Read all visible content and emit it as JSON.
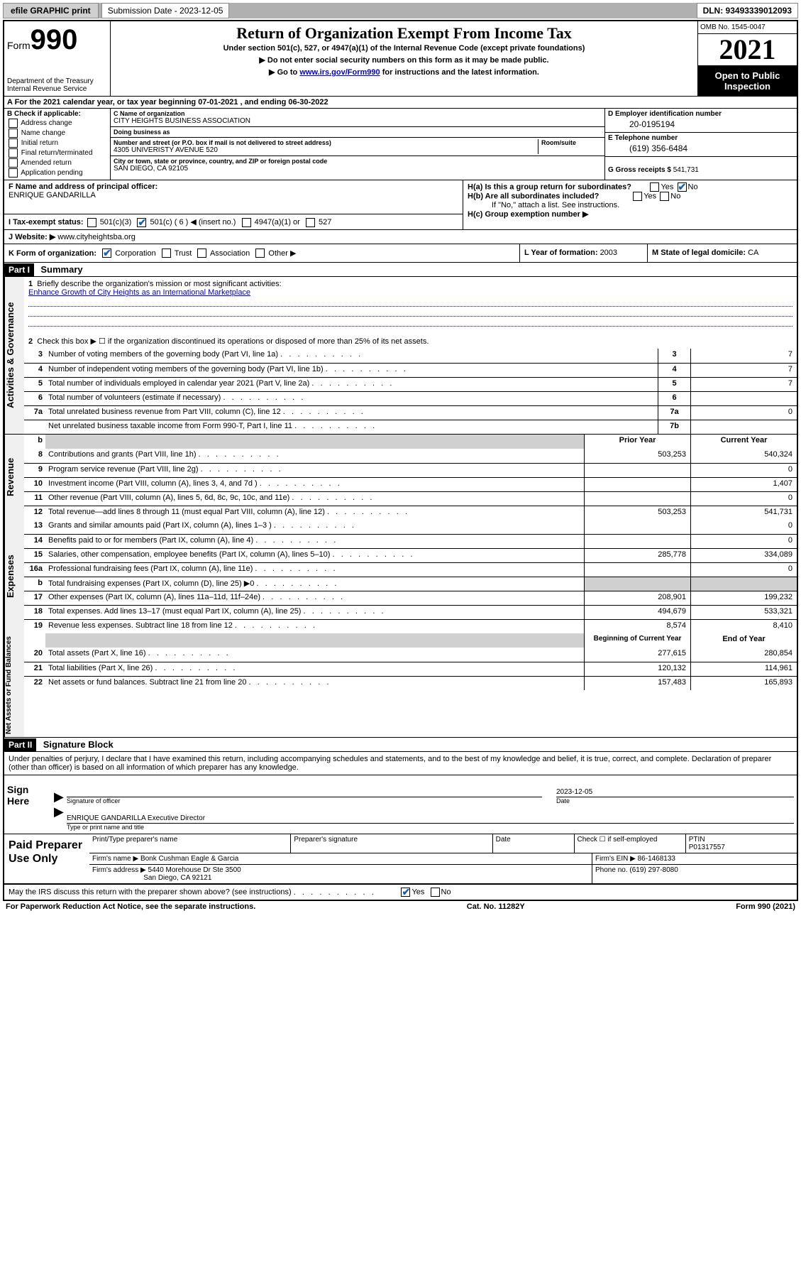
{
  "topbar": {
    "efile_label": "efile GRAPHIC print",
    "submission_label": "Submission Date - 2023-12-05",
    "dln_label": "DLN: 93493339012093"
  },
  "header": {
    "form_label": "Form",
    "form_number": "990",
    "dept": "Department of the Treasury",
    "irs": "Internal Revenue Service",
    "title": "Return of Organization Exempt From Income Tax",
    "subtitle": "Under section 501(c), 527, or 4947(a)(1) of the Internal Revenue Code (except private foundations)",
    "note1": "▶ Do not enter social security numbers on this form as it may be made public.",
    "note2_pre": "▶ Go to ",
    "note2_link": "www.irs.gov/Form990",
    "note2_post": " for instructions and the latest information.",
    "omb": "OMB No. 1545-0047",
    "year": "2021",
    "opi": "Open to Public Inspection"
  },
  "row_a": "A For the 2021 calendar year, or tax year beginning 07-01-2021    , and ending 06-30-2022",
  "col_b": {
    "hdr": "B Check if applicable:",
    "opts": [
      "Address change",
      "Name change",
      "Initial return",
      "Final return/terminated",
      "Amended return",
      "Application pending"
    ]
  },
  "col_c": {
    "name_lbl": "C Name of organization",
    "name_val": "CITY HEIGHTS BUSINESS ASSOCIATION",
    "dba_lbl": "Doing business as",
    "dba_val": "",
    "addr_lbl": "Number and street (or P.O. box if mail is not delivered to street address)",
    "room_lbl": "Room/suite",
    "addr_val": "4305 UNIVERISTY AVENUE 520",
    "city_lbl": "City or town, state or province, country, and ZIP or foreign postal code",
    "city_val": "SAN DIEGO, CA  92105"
  },
  "col_de": {
    "d_lbl": "D Employer identification number",
    "d_val": "20-0195194",
    "e_lbl": "E Telephone number",
    "e_val": "(619) 356-6484",
    "g_lbl": "G Gross receipts $",
    "g_val": "541,731"
  },
  "row_f": {
    "f_lbl": "F  Name and address of principal officer:",
    "f_val": "ENRIQUE GANDARILLA",
    "ha_lbl": "H(a)  Is this a group return for subordinates?",
    "hb_lbl": "H(b)  Are all subordinates included?",
    "hb_note": "If \"No,\" attach a list. See instructions.",
    "hc_lbl": "H(c)  Group exemption number ▶",
    "yes": "Yes",
    "no": "No"
  },
  "row_i": {
    "lbl": "I    Tax-exempt status:",
    "o1": "501(c)(3)",
    "o2": "501(c) ( 6 ) ◀ (insert no.)",
    "o3": "4947(a)(1) or",
    "o4": "527"
  },
  "row_j": {
    "lbl": "J    Website: ▶ ",
    "val": "www.cityheightsba.org"
  },
  "row_k": {
    "lbl": "K Form of organization:",
    "o1": "Corporation",
    "o2": "Trust",
    "o3": "Association",
    "o4": "Other ▶",
    "l_lbl": "L Year of formation: ",
    "l_val": "2003",
    "m_lbl": "M State of legal domicile: ",
    "m_val": "CA"
  },
  "part1": {
    "hdr": "Part I",
    "title": "Summary",
    "tabs": {
      "gov": "Activities & Governance",
      "rev": "Revenue",
      "exp": "Expenses",
      "net": "Net Assets or Fund Balances"
    },
    "q1_lbl": "Briefly describe the organization's mission or most significant activities:",
    "q1_val": "Enhance Growth of City Heights as an International Marketplace",
    "q2": "Check this box ▶ ☐  if the organization discontinued its operations or disposed of more than 25% of its net assets.",
    "lines_gov": [
      {
        "n": "3",
        "t": "Number of voting members of the governing body (Part VI, line 1a)",
        "b": "3",
        "v": "7"
      },
      {
        "n": "4",
        "t": "Number of independent voting members of the governing body (Part VI, line 1b)",
        "b": "4",
        "v": "7"
      },
      {
        "n": "5",
        "t": "Total number of individuals employed in calendar year 2021 (Part V, line 2a)",
        "b": "5",
        "v": "7"
      },
      {
        "n": "6",
        "t": "Total number of volunteers (estimate if necessary)",
        "b": "6",
        "v": ""
      },
      {
        "n": "7a",
        "t": "Total unrelated business revenue from Part VIII, column (C), line 12",
        "b": "7a",
        "v": "0"
      },
      {
        "n": "",
        "t": "Net unrelated business taxable income from Form 990-T, Part I, line 11",
        "b": "7b",
        "v": ""
      }
    ],
    "hdr_prior": "Prior Year",
    "hdr_curr": "Current Year",
    "lines_rev": [
      {
        "n": "8",
        "t": "Contributions and grants (Part VIII, line 1h)",
        "p": "503,253",
        "c": "540,324"
      },
      {
        "n": "9",
        "t": "Program service revenue (Part VIII, line 2g)",
        "p": "",
        "c": "0"
      },
      {
        "n": "10",
        "t": "Investment income (Part VIII, column (A), lines 3, 4, and 7d )",
        "p": "",
        "c": "1,407"
      },
      {
        "n": "11",
        "t": "Other revenue (Part VIII, column (A), lines 5, 6d, 8c, 9c, 10c, and 11e)",
        "p": "",
        "c": "0"
      },
      {
        "n": "12",
        "t": "Total revenue—add lines 8 through 11 (must equal Part VIII, column (A), line 12)",
        "p": "503,253",
        "c": "541,731"
      }
    ],
    "lines_exp": [
      {
        "n": "13",
        "t": "Grants and similar amounts paid (Part IX, column (A), lines 1–3 )",
        "p": "",
        "c": "0"
      },
      {
        "n": "14",
        "t": "Benefits paid to or for members (Part IX, column (A), line 4)",
        "p": "",
        "c": "0"
      },
      {
        "n": "15",
        "t": "Salaries, other compensation, employee benefits (Part IX, column (A), lines 5–10)",
        "p": "285,778",
        "c": "334,089"
      },
      {
        "n": "16a",
        "t": "Professional fundraising fees (Part IX, column (A), line 11e)",
        "p": "",
        "c": "0"
      },
      {
        "n": "b",
        "t": "Total fundraising expenses (Part IX, column (D), line 25) ▶0",
        "p": "shade",
        "c": "shade"
      },
      {
        "n": "17",
        "t": "Other expenses (Part IX, column (A), lines 11a–11d, 11f–24e)",
        "p": "208,901",
        "c": "199,232"
      },
      {
        "n": "18",
        "t": "Total expenses. Add lines 13–17 (must equal Part IX, column (A), line 25)",
        "p": "494,679",
        "c": "533,321"
      },
      {
        "n": "19",
        "t": "Revenue less expenses. Subtract line 18 from line 12",
        "p": "8,574",
        "c": "8,410"
      }
    ],
    "hdr_beg": "Beginning of Current Year",
    "hdr_end": "End of Year",
    "lines_net": [
      {
        "n": "20",
        "t": "Total assets (Part X, line 16)",
        "p": "277,615",
        "c": "280,854"
      },
      {
        "n": "21",
        "t": "Total liabilities (Part X, line 26)",
        "p": "120,132",
        "c": "114,961"
      },
      {
        "n": "22",
        "t": "Net assets or fund balances. Subtract line 21 from line 20",
        "p": "157,483",
        "c": "165,893"
      }
    ]
  },
  "part2": {
    "hdr": "Part II",
    "title": "Signature Block",
    "decl": "Under penalties of perjury, I declare that I have examined this return, including accompanying schedules and statements, and to the best of my knowledge and belief, it is true, correct, and complete. Declaration of preparer (other than officer) is based on all information of which preparer has any knowledge.",
    "sign_here": "Sign Here",
    "sig_officer_cap": "Signature of officer",
    "sig_date_cap": "Date",
    "sig_date_val": "2023-12-05",
    "sig_name_val": "ENRIQUE GANDARILLA  Executive Director",
    "sig_name_cap": "Type or print name and title",
    "paid": "Paid Preparer Use Only",
    "p_name_lbl": "Print/Type preparer's name",
    "p_sig_lbl": "Preparer's signature",
    "p_date_lbl": "Date",
    "p_check_lbl": "Check ☐ if self-employed",
    "p_ptin_lbl": "PTIN",
    "p_ptin_val": "P01317557",
    "p_firm_lbl": "Firm's name    ▶",
    "p_firm_val": "Bonk Cushman Eagle & Garcia",
    "p_ein_lbl": "Firm's EIN ▶",
    "p_ein_val": "86-1468133",
    "p_addr_lbl": "Firm's address ▶",
    "p_addr_val1": "5440 Morehouse Dr Ste 3500",
    "p_addr_val2": "San Diego, CA  92121",
    "p_phone_lbl": "Phone no.",
    "p_phone_val": "(619) 297-8080",
    "may_irs": "May the IRS discuss this return with the preparer shown above? (see instructions)",
    "yes": "Yes",
    "no": "No"
  },
  "footer": {
    "left": "For Paperwork Reduction Act Notice, see the separate instructions.",
    "mid": "Cat. No. 11282Y",
    "right_pre": "Form ",
    "right_form": "990",
    "right_post": " (2021)"
  }
}
